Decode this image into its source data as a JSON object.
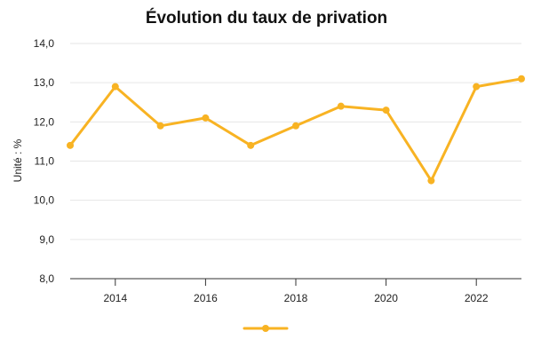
{
  "chart_data": {
    "type": "line",
    "title": "Évolution du taux de privation",
    "xlabel": "",
    "ylabel": "Unité : %",
    "x": [
      2013,
      2014,
      2015,
      2016,
      2017,
      2018,
      2019,
      2020,
      2021,
      2022,
      2023
    ],
    "series": [
      {
        "name": "",
        "color": "#f8b323",
        "values": [
          11.4,
          12.9,
          11.9,
          12.1,
          11.4,
          11.9,
          12.4,
          12.3,
          10.5,
          12.9,
          13.1
        ]
      }
    ],
    "ylim": [
      8,
      14
    ],
    "xlim": [
      2013,
      2023
    ],
    "yticks": [
      8,
      9,
      10,
      11,
      12,
      13,
      14
    ],
    "ytick_labels": [
      "8,0",
      "9,0",
      "10,0",
      "11,0",
      "12,0",
      "13,0",
      "14,0"
    ],
    "xticks": [
      2014,
      2016,
      2018,
      2020,
      2022
    ],
    "xtick_labels": [
      "2014",
      "2016",
      "2018",
      "2020",
      "2022"
    ],
    "grid": true,
    "legend_position": "bottom"
  }
}
